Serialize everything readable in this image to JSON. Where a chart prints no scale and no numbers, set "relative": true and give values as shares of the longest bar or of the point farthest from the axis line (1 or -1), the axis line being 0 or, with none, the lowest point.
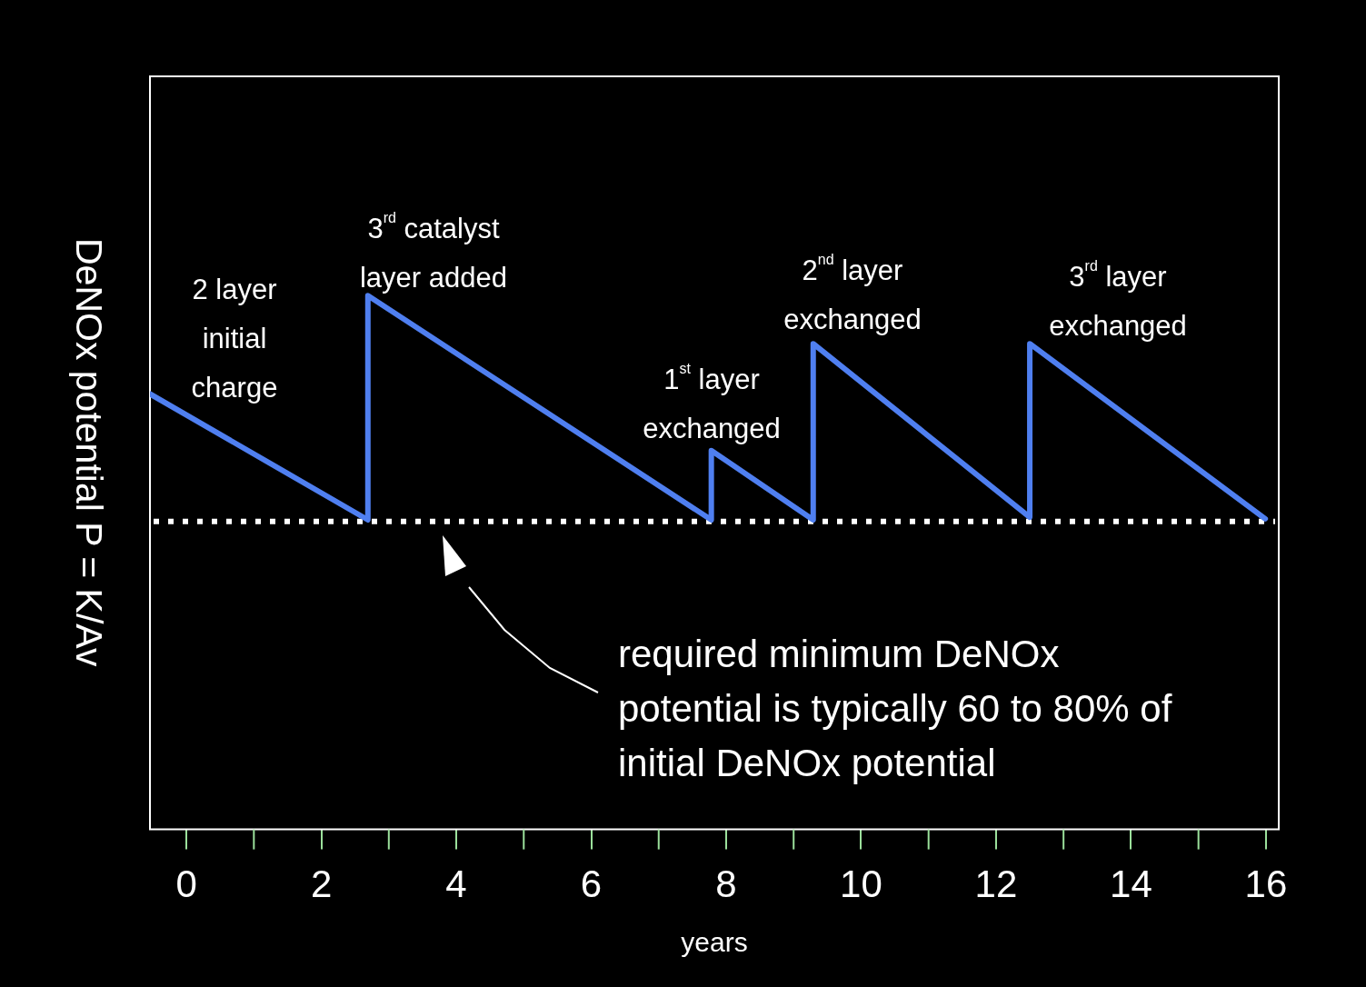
{
  "chart_data": {
    "type": "line",
    "relative": true,
    "marker": "none",
    "line_style": "solid",
    "xlabel": "years",
    "ylabel": "DeNOx potential P = K/Av",
    "xlim": [
      -0.54,
      16.19
    ],
    "xticks": [
      0,
      2,
      4,
      6,
      8,
      10,
      12,
      14,
      16
    ],
    "series": [
      {
        "color": "#4f7ff0",
        "x": [
          -0.54,
          2.69,
          2.69,
          7.78,
          7.78,
          9.29,
          9.29,
          12.5,
          12.5,
          15.99
        ],
        "values": [
          0.816,
          0.58,
          1,
          0.58,
          0.71,
          0.58,
          0.91,
          0.585,
          0.91,
          0.582
        ]
      }
    ],
    "ref_lines": [
      {
        "axis": "y",
        "value": 0.577,
        "color": "#ffffff",
        "line_style": "dotted"
      }
    ],
    "annotations": [
      "2 layer initial charge",
      "3$^{rd}$ catalyst layer added",
      "1$^{st}$ layer exchanged",
      "2$^{nd}$ layer exchanged",
      "3$^{rd}$ layer exchanged",
      "required minimum DeNOx potential is typically 60 to 80% of initial DeNOx potential"
    ]
  }
}
